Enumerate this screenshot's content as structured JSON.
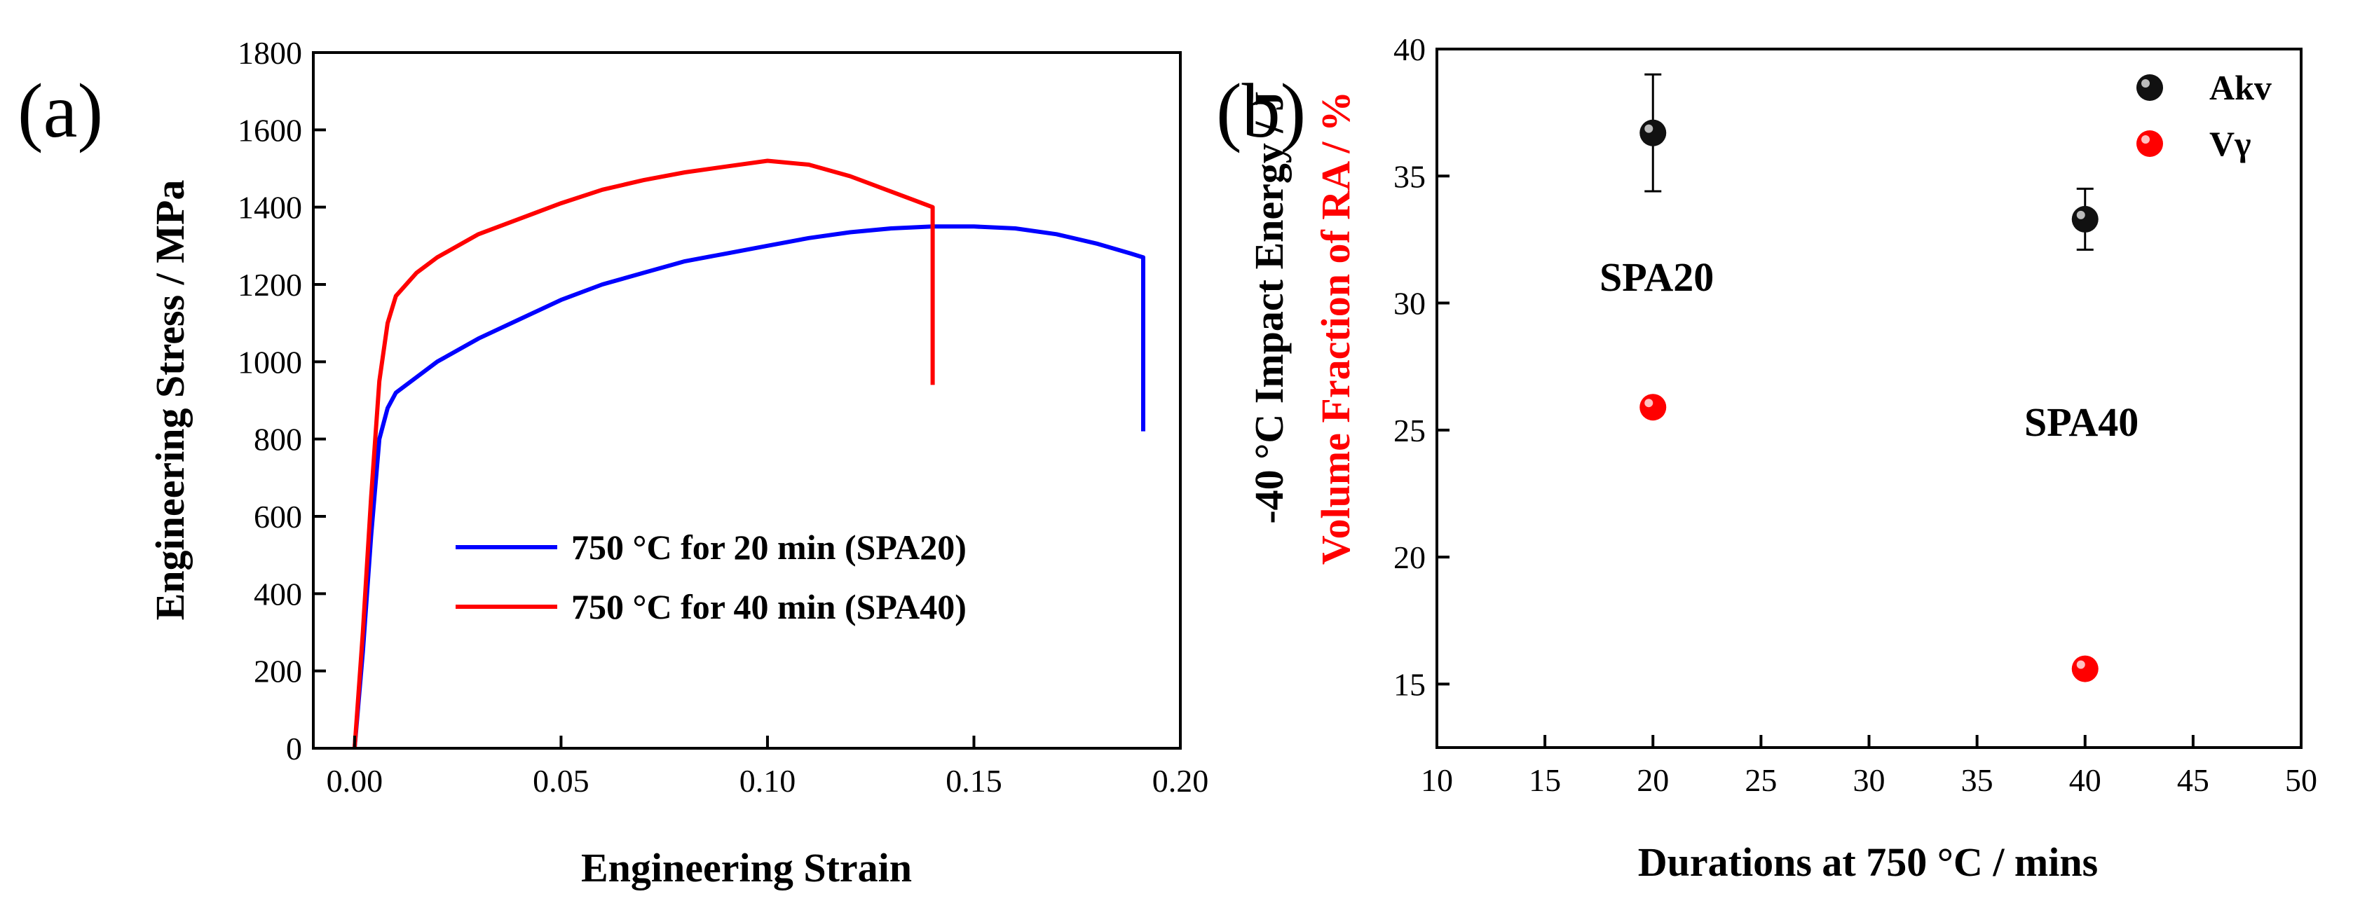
{
  "colors": {
    "series_a": "#0000ff",
    "series_b": "#ff0000",
    "akv": "#000000",
    "vgamma": "#ff0000",
    "axis": "#000000"
  },
  "chart_data": [
    {
      "type": "line",
      "panel_label": "(a)",
      "xlabel": "Engineering Strain",
      "ylabel": "Engineering Stress / MPa",
      "xlim": [
        -0.01,
        0.2
      ],
      "ylim": [
        0,
        1800
      ],
      "xticks": [
        0.0,
        0.05,
        0.1,
        0.15,
        0.2
      ],
      "xtick_labels": [
        "0.00",
        "0.05",
        "0.10",
        "0.15",
        "0.20"
      ],
      "yticks": [
        0,
        200,
        400,
        600,
        800,
        1000,
        1200,
        1400,
        1600,
        1800
      ],
      "ytick_labels": [
        "0",
        "200",
        "400",
        "600",
        "800",
        "1000",
        "1200",
        "1400",
        "1600",
        "1800"
      ],
      "legend": [
        "750 °C for 20 min (SPA20)",
        "750 °C for 40 min (SPA40)"
      ],
      "legend_position": "center-right",
      "series": [
        {
          "name": "750 °C for 20 min (SPA20)",
          "color": "#0000ff",
          "x": [
            0.0,
            0.002,
            0.004,
            0.006,
            0.008,
            0.01,
            0.015,
            0.02,
            0.03,
            0.04,
            0.05,
            0.06,
            0.07,
            0.08,
            0.09,
            0.1,
            0.11,
            0.12,
            0.13,
            0.14,
            0.15,
            0.16,
            0.17,
            0.18,
            0.188,
            0.191,
            0.191
          ],
          "y": [
            0,
            250,
            550,
            800,
            880,
            920,
            960,
            1000,
            1060,
            1110,
            1160,
            1200,
            1230,
            1260,
            1280,
            1300,
            1320,
            1335,
            1345,
            1350,
            1350,
            1345,
            1330,
            1305,
            1280,
            1270,
            820
          ]
        },
        {
          "name": "750 °C for 40 min (SPA40)",
          "color": "#ff0000",
          "x": [
            0.0,
            0.002,
            0.004,
            0.006,
            0.008,
            0.01,
            0.015,
            0.02,
            0.03,
            0.04,
            0.05,
            0.06,
            0.07,
            0.08,
            0.09,
            0.1,
            0.11,
            0.12,
            0.13,
            0.135,
            0.14,
            0.14
          ],
          "y": [
            0,
            300,
            650,
            950,
            1100,
            1170,
            1230,
            1270,
            1330,
            1370,
            1410,
            1445,
            1470,
            1490,
            1505,
            1520,
            1510,
            1480,
            1440,
            1420,
            1400,
            940
          ]
        }
      ]
    },
    {
      "type": "scatter",
      "panel_label": "(b)",
      "xlabel": "Durations at 750 °C / mins",
      "ylabel_black": "-40 °C Impact Energy / J",
      "ylabel_red": "Volume Fraction of RA / %",
      "xlim": [
        10,
        50
      ],
      "ylim": [
        12.5,
        40
      ],
      "xticks": [
        10,
        15,
        20,
        25,
        30,
        35,
        40,
        45,
        50
      ],
      "xtick_labels": [
        "10",
        "15",
        "20",
        "25",
        "30",
        "35",
        "40",
        "45",
        "50"
      ],
      "yticks": [
        15,
        20,
        25,
        30,
        35,
        40
      ],
      "ytick_labels": [
        "15",
        "20",
        "25",
        "30",
        "35",
        "40"
      ],
      "legend": [
        "Akv",
        "Vγ"
      ],
      "legend_position": "top-right",
      "series": [
        {
          "name": "Akv",
          "color": "#000000",
          "x": [
            20,
            40
          ],
          "y": [
            36.7,
            33.3
          ],
          "err_low": [
            34.4,
            32.1
          ],
          "err_high": [
            39.0,
            34.5
          ]
        },
        {
          "name": "Vγ",
          "color": "#ff0000",
          "x": [
            20,
            40
          ],
          "y": [
            25.9,
            15.6
          ]
        }
      ],
      "annotations": [
        {
          "text": "SPA20",
          "x": 20.5,
          "y": 30.5
        },
        {
          "text": "SPA40",
          "x": 39.5,
          "y": 25.0
        }
      ]
    }
  ]
}
